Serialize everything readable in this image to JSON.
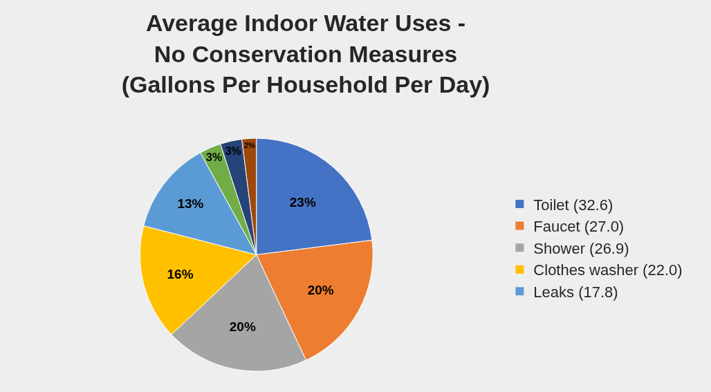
{
  "chart_data": {
    "type": "pie",
    "title": "Average Indoor Water Uses -\nNo Conservation Measures\n(Gallons Per Household Per Day)",
    "categories": [
      "Toilet (32.6)",
      "Faucet (27.0)",
      "Shower (26.9)",
      "Clothes washer (22.0)",
      "Leaks (17.8)",
      null,
      null,
      null
    ],
    "values": [
      23,
      20,
      20,
      16,
      13,
      3,
      3,
      2
    ],
    "value_labels": [
      "23%",
      "20%",
      "20%",
      "16%",
      "13%",
      "3%",
      "3%",
      "2%"
    ],
    "colors": [
      "#4472c4",
      "#ed7d31",
      "#a5a5a5",
      "#ffc000",
      "#5b9bd5",
      "#70ad47",
      "#264478",
      "#9e480e"
    ],
    "legend": "right"
  }
}
